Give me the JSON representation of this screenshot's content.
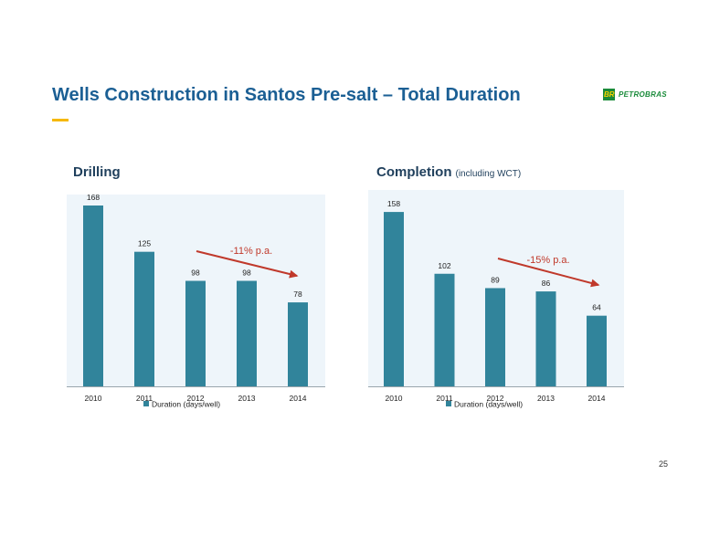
{
  "slide": {
    "title": "Wells Construction in Santos Pre-salt – Total Duration",
    "page_number": "25",
    "logo": {
      "mark": "BR",
      "word": "PETROBRAS"
    }
  },
  "colors": {
    "title": "#1b5f94",
    "accent": "#f6b800",
    "bar": "#31849b",
    "plot_bg": "#eef5fa",
    "arrow": "#c0392b",
    "annotation": "#c0392b",
    "chart_title": "#1f3f5c",
    "logo_green": "#1a8b3a"
  },
  "chart_data": [
    {
      "type": "bar",
      "title": "Drilling",
      "subtitle": "",
      "categories": [
        "2010",
        "2011",
        "2012",
        "2013",
        "2014"
      ],
      "series": [
        {
          "name": "Duration (days/well)",
          "values": [
            168,
            125,
            98,
            98,
            78
          ]
        }
      ],
      "data_labels": [
        "168",
        "125",
        "98",
        "98",
        "78"
      ],
      "annotation": "-11% p.a.",
      "ylim": [
        0,
        180
      ],
      "grid": false,
      "legend_position": "bottom",
      "xlabel": "",
      "ylabel": ""
    },
    {
      "type": "bar",
      "title": "Completion",
      "subtitle": "(including WCT)",
      "categories": [
        "2010",
        "2011",
        "2012",
        "2013",
        "2014"
      ],
      "series": [
        {
          "name": "Duration (days/well)",
          "values": [
            158,
            102,
            89,
            86,
            64
          ]
        }
      ],
      "data_labels": [
        "158",
        "102",
        "89",
        "86",
        "64"
      ],
      "annotation": "-15% p.a.",
      "ylim": [
        0,
        180
      ],
      "grid": false,
      "legend_position": "bottom",
      "xlabel": "",
      "ylabel": ""
    }
  ]
}
